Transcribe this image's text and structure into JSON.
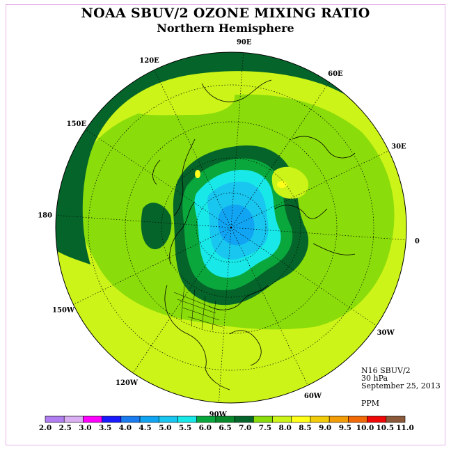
{
  "title": "NOAA SBUV/2 OZONE MIXING RATIO",
  "subtitle": "Northern Hemisphere",
  "info": {
    "satellite": "N16 SBUV/2",
    "level": "30 hPa",
    "date": "September 25, 2013",
    "units": "PPM"
  },
  "longitude_labels": [
    "90E",
    "60E",
    "30E",
    "0",
    "30W",
    "60W",
    "90W",
    "120W",
    "150W",
    "180",
    "150E",
    "120E"
  ],
  "colorbar": {
    "labels": [
      "2.0",
      "2.5",
      "3.0",
      "3.5",
      "4.0",
      "4.5",
      "5.0",
      "5.5",
      "6.0",
      "6.5",
      "7.0",
      "7.5",
      "8.0",
      "8.5",
      "9.0",
      "9.5",
      "10.0",
      "10.5",
      "11.0"
    ],
    "colors": [
      "#b07ef0",
      "#d9aff2",
      "#ff00ff",
      "#1a1aff",
      "#1a7cf0",
      "#10a4f2",
      "#18c6f0",
      "#18e8e8",
      "#0aa83c",
      "#088a2c",
      "#05642a",
      "#8adc0a",
      "#ccf418",
      "#ffff1a",
      "#f2cc0a",
      "#f29c08",
      "#f26a08",
      "#f00808",
      "#8a5a3a"
    ]
  }
}
